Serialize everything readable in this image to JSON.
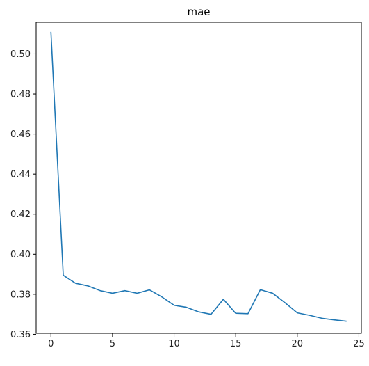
{
  "chart_data": {
    "type": "line",
    "title": "mae",
    "xlabel": "",
    "ylabel": "",
    "xlim": [
      -1.2,
      25.2
    ],
    "ylim": [
      0.3605,
      0.5158
    ],
    "x_ticks": [
      0,
      5,
      10,
      15,
      20,
      25
    ],
    "y_ticks": [
      0.36,
      0.38,
      0.4,
      0.42,
      0.44,
      0.46,
      0.48,
      0.5
    ],
    "grid": false,
    "legend": "none",
    "series": [
      {
        "color": "#1f77b4",
        "x": [
          0,
          1,
          2,
          3,
          4,
          5,
          6,
          7,
          8,
          9,
          10,
          11,
          12,
          13,
          14,
          15,
          16,
          17,
          18,
          19,
          20,
          21,
          22,
          23,
          24
        ],
        "values": [
          0.511,
          0.3895,
          0.3855,
          0.3842,
          0.3818,
          0.3805,
          0.3818,
          0.3805,
          0.3822,
          0.3787,
          0.3745,
          0.3735,
          0.3712,
          0.37,
          0.3775,
          0.3705,
          0.3703,
          0.3823,
          0.3805,
          0.3758,
          0.3707,
          0.3695,
          0.368,
          0.3672,
          0.3665
        ]
      }
    ]
  }
}
